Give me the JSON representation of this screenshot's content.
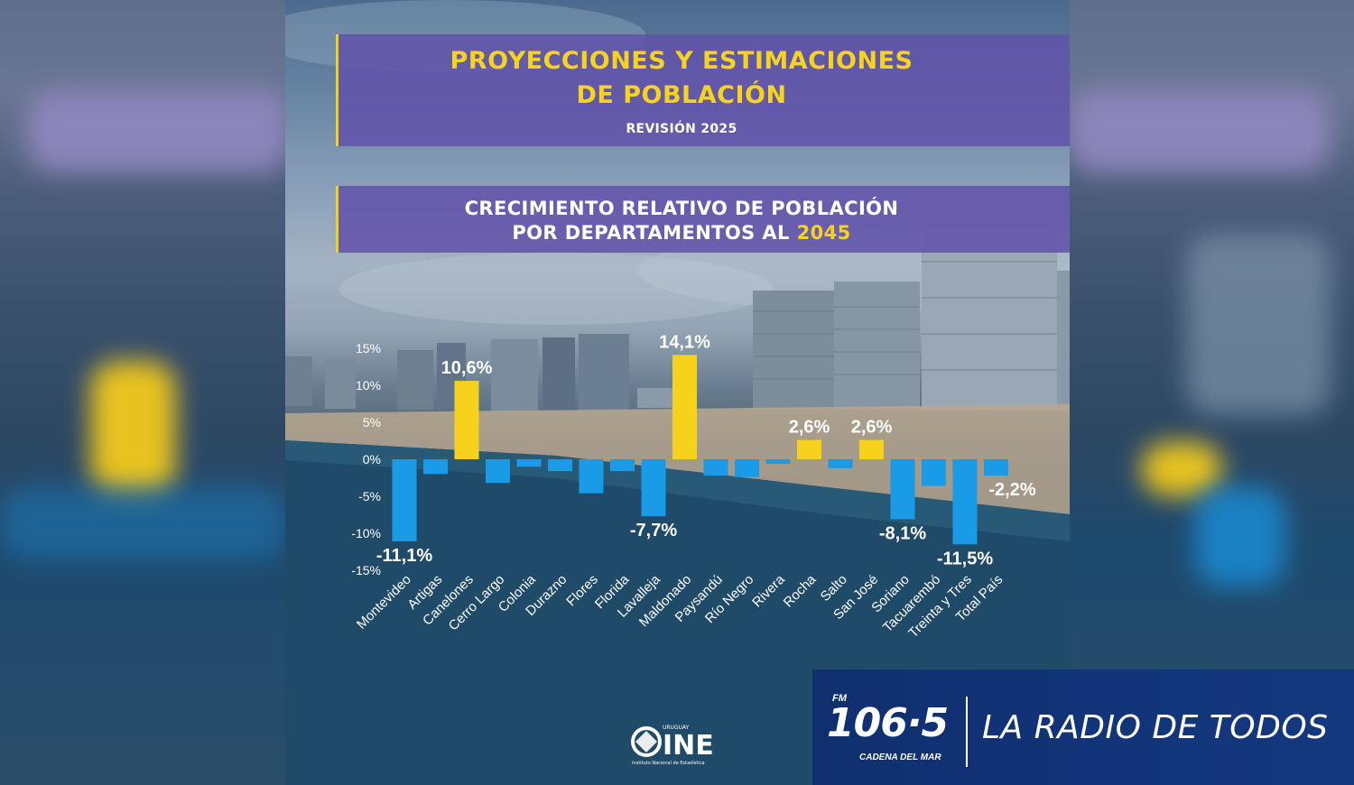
{
  "header": {
    "title_line1": "PROYECCIONES Y ESTIMACIONES",
    "title_line2": "DE POBLACIÓN",
    "revision": "REVISIÓN 2025",
    "subtitle_line1": "CRECIMIENTO RELATIVO DE POBLACIÓN",
    "subtitle_line2_prefix": "POR DEPARTAMENTOS AL",
    "subtitle_line2_year": "2045"
  },
  "colors": {
    "positive_bar": "#f7d21d",
    "negative_bar": "#1a9be8",
    "title_yellow": "#f6d31d",
    "banner_blue": "#12357a"
  },
  "chart_data": {
    "type": "bar",
    "categories": [
      "Montevideo",
      "Artigas",
      "Canelones",
      "Cerro Largo",
      "Colonia",
      "Durazno",
      "Flores",
      "Florida",
      "Lavalleja",
      "Maldonado",
      "Paysandú",
      "Río Negro",
      "Rivera",
      "Rocha",
      "Salto",
      "San José",
      "Soriano",
      "Tacuarembó",
      "Treinta y Tres",
      "Total País"
    ],
    "values": [
      -11.1,
      -2.0,
      10.6,
      -3.2,
      -1.0,
      -1.6,
      -4.6,
      -1.6,
      -7.7,
      14.1,
      -2.2,
      -2.4,
      -0.6,
      2.6,
      -1.2,
      2.6,
      -8.1,
      -3.6,
      -11.5,
      -2.2
    ],
    "data_labels": [
      "-11,1%",
      "",
      "10,6%",
      "",
      "",
      "",
      "",
      "",
      "-7,7%",
      "14,1%",
      "",
      "",
      "",
      "2,6%",
      "",
      "2,6%",
      "-8,1%",
      "",
      "-11,5%",
      "-2,2%"
    ],
    "yticks": [
      15,
      10,
      5,
      0,
      -5,
      -10,
      -15
    ],
    "ytick_labels": [
      "15%",
      "10%",
      "5%",
      "0%",
      "-5%",
      "-10%",
      "-15%"
    ],
    "ylim": [
      -15,
      15
    ],
    "grid": false,
    "legend": "none"
  },
  "footer": {
    "ine_top": "URUGUAY",
    "ine_name": "INE",
    "ine_caption": "Instituto Nacional de Estadística"
  },
  "banner": {
    "fm_label": "FM",
    "frequency": "106·5",
    "station_name": "CADENA DEL MAR",
    "slogan": "LA RADIO DE TODOS"
  }
}
